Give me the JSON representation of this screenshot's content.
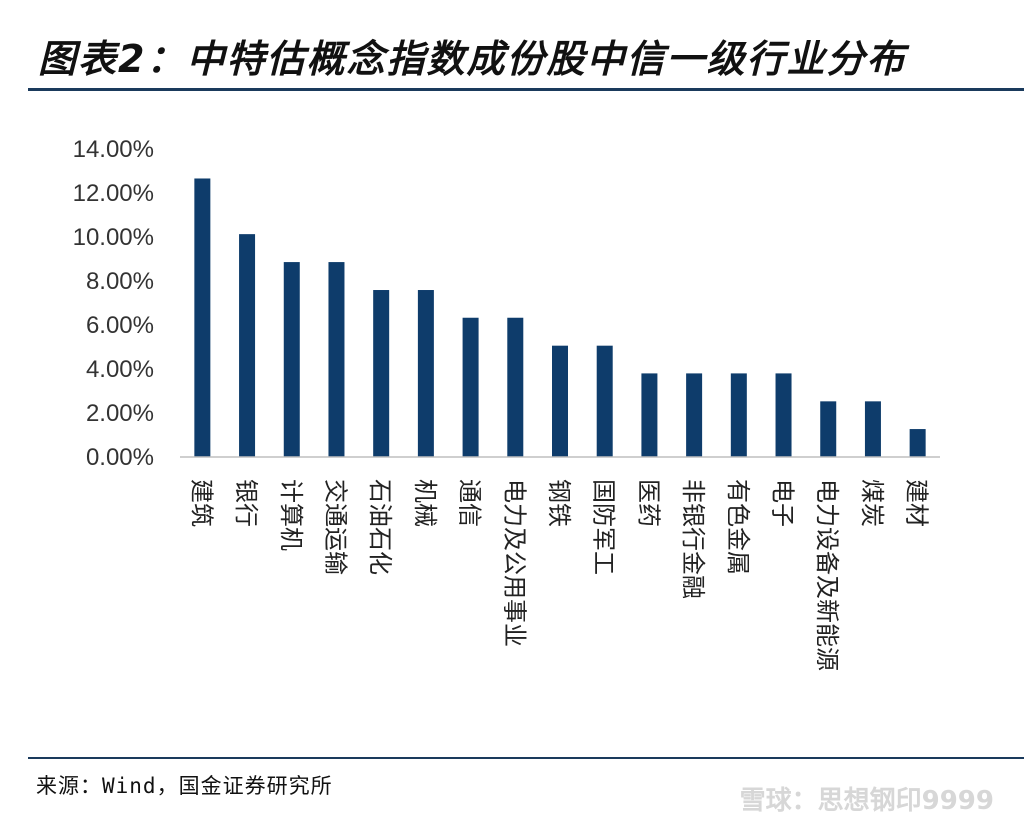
{
  "header": {
    "title": "图表2：中特估概念指数成份股中信一级行业分布"
  },
  "footer": {
    "source": "来源：Wind，国金证券研究所",
    "watermark": "雪球：思想钢印9999"
  },
  "colors": {
    "bar": "#0e3c6b",
    "axis": "#bfbfbf"
  },
  "chart_data": {
    "type": "bar",
    "categories": [
      "建筑",
      "银行",
      "计算机",
      "交通运输",
      "石油石化",
      "机械",
      "通信",
      "电力及公用事业",
      "钢铁",
      "国防军工",
      "医药",
      "非银行金融",
      "有色金属",
      "电子",
      "电力设备及新能源",
      "煤炭",
      "建材"
    ],
    "values": [
      12.66,
      10.13,
      8.86,
      8.86,
      7.59,
      7.59,
      6.33,
      6.33,
      5.06,
      5.06,
      3.8,
      3.8,
      3.8,
      3.8,
      2.53,
      2.53,
      1.27
    ],
    "ylim": [
      0,
      14
    ],
    "yticks": [
      "0.00%",
      "2.00%",
      "4.00%",
      "6.00%",
      "8.00%",
      "10.00%",
      "12.00%",
      "14.00%"
    ],
    "title": "",
    "xlabel": "",
    "ylabel": ""
  }
}
